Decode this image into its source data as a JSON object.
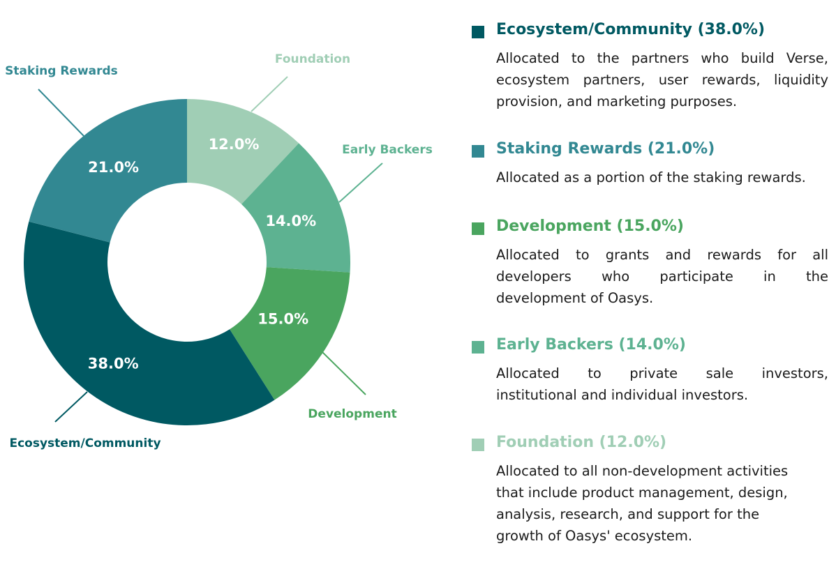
{
  "chart_data": {
    "type": "pie",
    "donut": true,
    "start": "12 o'clock",
    "direction": "clockwise",
    "series": [
      {
        "name": "Foundation",
        "value": 12.0,
        "label": "12.0%",
        "color": "#a0ceb5"
      },
      {
        "name": "Early Backers",
        "value": 14.0,
        "label": "14.0%",
        "color": "#5db291"
      },
      {
        "name": "Development",
        "value": 15.0,
        "label": "15.0%",
        "color": "#4aa55f"
      },
      {
        "name": "Ecosystem/Community",
        "value": 38.0,
        "label": "38.0%",
        "color": "#005962"
      },
      {
        "name": "Staking Rewards",
        "value": 21.0,
        "label": "21.0%",
        "color": "#328892"
      }
    ]
  },
  "legend": [
    {
      "title": "Ecosystem/Community (38.0%)",
      "color": "#005962",
      "lines": [
        "Allocated to the partners who build Verse,",
        "ecosystem partners, user rewards, liquidity",
        "provision, and marketing purposes."
      ]
    },
    {
      "title": "Staking Rewards (21.0%)",
      "color": "#328892",
      "lines": [
        "Allocated as a portion of the staking rewards."
      ]
    },
    {
      "title": "Development (15.0%)",
      "color": "#4aa55f",
      "lines": [
        "Allocated to grants and rewards for all",
        "developers who participate in the",
        "development of Oasys."
      ]
    },
    {
      "title": "Early Backers (14.0%)",
      "color": "#5db291",
      "lines": [
        "Allocated to private sale investors,",
        "institutional and individual investors."
      ]
    },
    {
      "title": "Foundation (12.0%)",
      "color": "#a0ceb5",
      "lines": [
        "Allocated to all non-development activities",
        "that include product management, design,",
        "analysis, research, and support for the",
        "growth of Oasys' ecosystem."
      ]
    }
  ]
}
